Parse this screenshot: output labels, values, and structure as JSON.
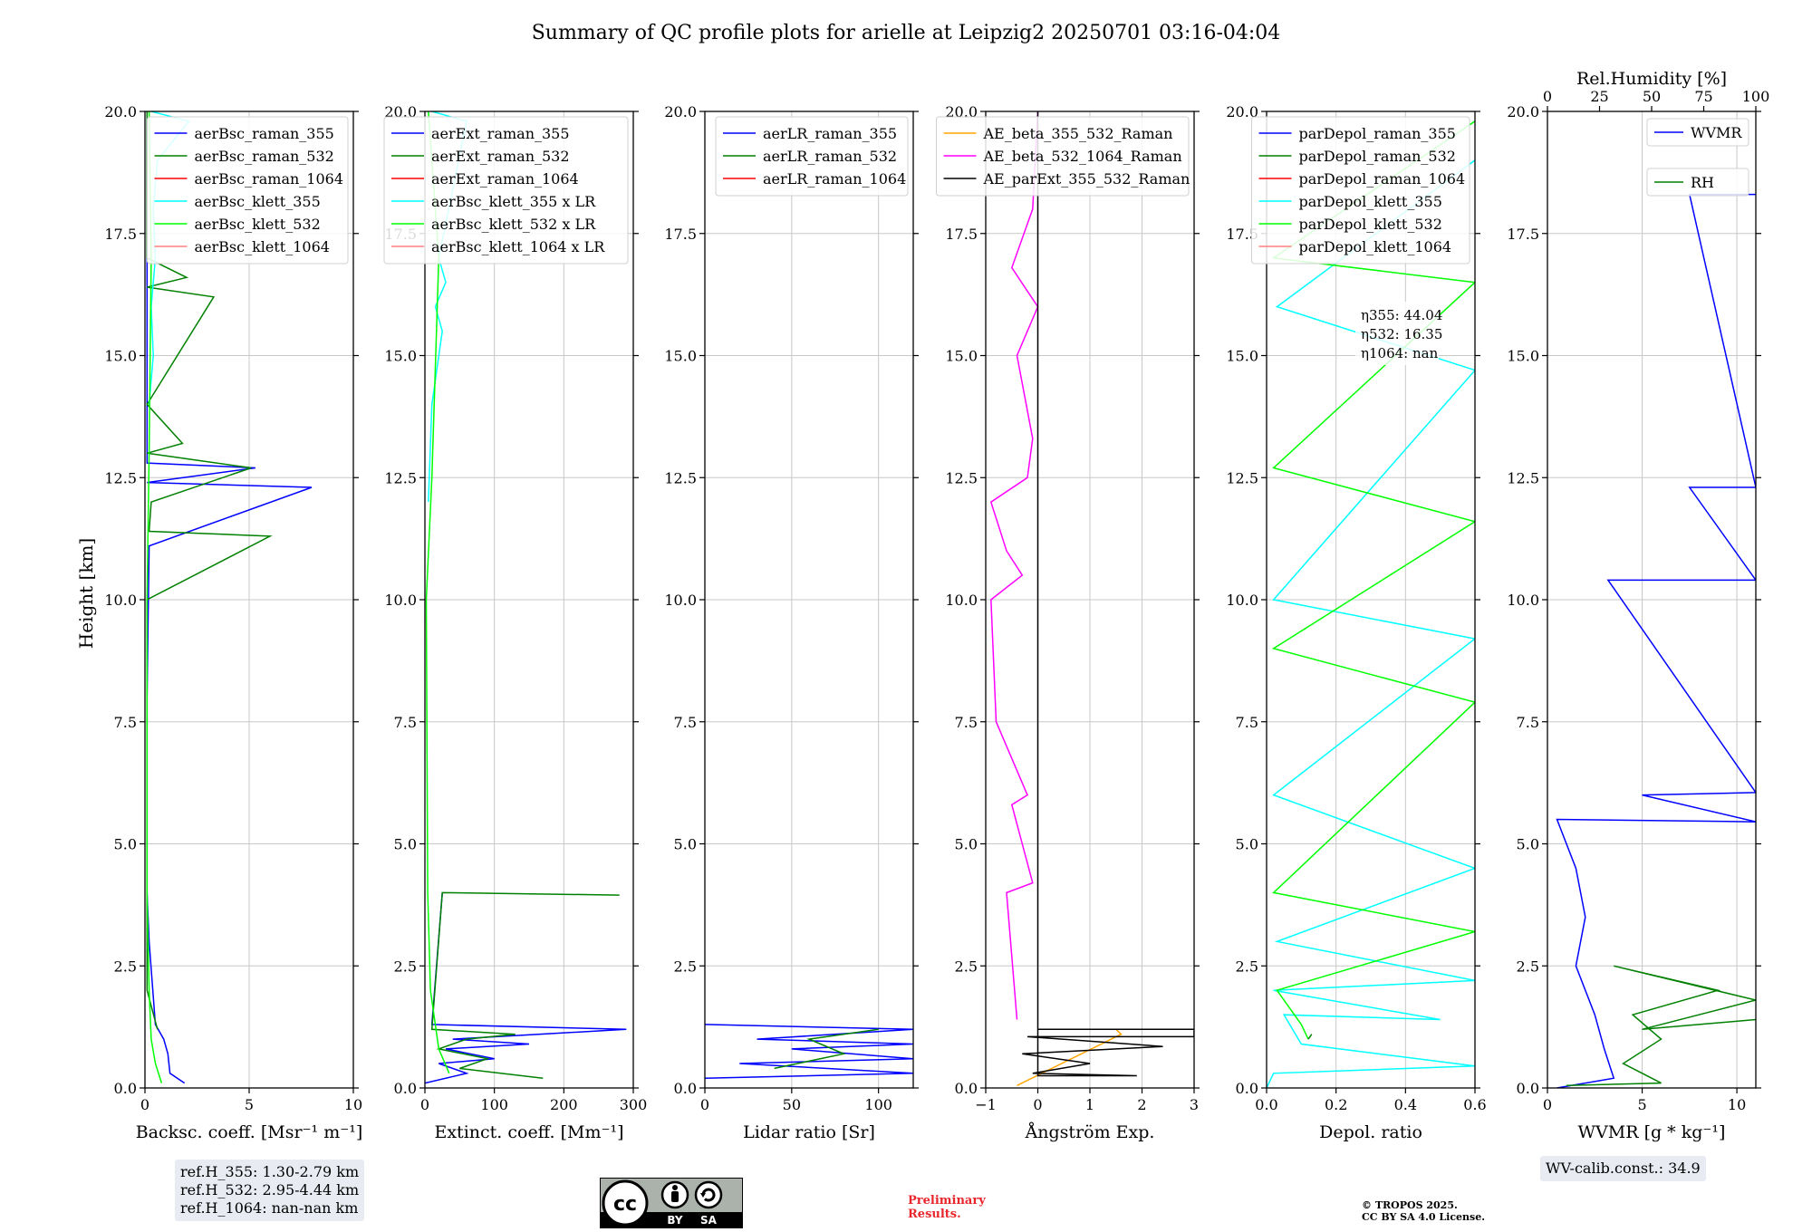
{
  "title": "Summary of QC profile plots for arielle at Leipzig2 20250701 03:16-04:04",
  "ylabel": "Height [km]",
  "y_ticks": [
    "0.0",
    "2.5",
    "5.0",
    "7.5",
    "10.0",
    "12.5",
    "15.0",
    "17.5",
    "20.0"
  ],
  "ref_heights": [
    "ref.H_355: 1.30-2.79 km",
    "ref.H_532: 2.95-4.44 km",
    "ref.H_1064: nan-nan km"
  ],
  "wv_calib": "WV-calib.const.: 34.9",
  "preliminary": [
    "Preliminary",
    "Results."
  ],
  "copyright": [
    "© TROPOS 2025.",
    "CC BY SA 4.0 License."
  ],
  "license_badge": {
    "cc": "cc",
    "by": "BY",
    "sa": "SA"
  },
  "colors": {
    "blue": "#0000ff",
    "green": "#008000",
    "red": "#ff0000",
    "cyan": "#00ffff",
    "lime": "#00ff00",
    "pink": "#ff8080",
    "orange": "#ffa500",
    "magenta": "#ff00ff",
    "black": "#000000"
  },
  "chart_data": [
    {
      "type": "line",
      "xlabel": "Backsc. coeff. [Msr⁻¹ m⁻¹]",
      "xlim": [
        0,
        10
      ],
      "ylim": [
        0,
        20
      ],
      "x_ticks": [
        0,
        5,
        10
      ],
      "x_tick_labels": [
        "0",
        "5",
        "10"
      ],
      "legend": [
        "aerBsc_raman_355",
        "aerBsc_raman_532",
        "aerBsc_raman_1064",
        "aerBsc_klett_355",
        "aerBsc_klett_532",
        "aerBsc_klett_1064"
      ],
      "legend_colors": [
        "blue",
        "green",
        "red",
        "cyan",
        "lime",
        "pink"
      ],
      "legend_placement": "top-right",
      "series": [
        {
          "name": "aerBsc_raman_355",
          "color": "blue",
          "points": [
            [
              1.9,
              0.1
            ],
            [
              1.2,
              0.3
            ],
            [
              1.1,
              0.7
            ],
            [
              0.9,
              1.0
            ],
            [
              0.5,
              1.3
            ],
            [
              0.2,
              3.0
            ],
            [
              0.1,
              4.0
            ],
            [
              0.1,
              8.0
            ],
            [
              0.2,
              11.1
            ],
            [
              8.0,
              12.3
            ],
            [
              0.1,
              12.4
            ],
            [
              5.3,
              12.7
            ],
            [
              0.1,
              12.8
            ],
            [
              0.1,
              20.0
            ]
          ]
        },
        {
          "name": "aerBsc_raman_532",
          "color": "green",
          "points": [
            [
              0.6,
              1.2
            ],
            [
              0.1,
              2.0
            ],
            [
              0.1,
              7.3
            ],
            [
              0.1,
              10.0
            ],
            [
              6.0,
              11.3
            ],
            [
              0.2,
              11.4
            ],
            [
              0.3,
              12.0
            ],
            [
              5.1,
              12.7
            ],
            [
              0.1,
              13.0
            ],
            [
              1.8,
              13.2
            ],
            [
              0.1,
              14.0
            ],
            [
              3.3,
              16.2
            ],
            [
              0.1,
              16.4
            ],
            [
              2.0,
              16.6
            ],
            [
              0.1,
              17.0
            ],
            [
              0.1,
              20.0
            ]
          ]
        },
        {
          "name": "aerBsc_klett_355",
          "color": "cyan",
          "points": [
            [
              0.2,
              14.0
            ],
            [
              0.4,
              15.0
            ],
            [
              0.3,
              16.0
            ],
            [
              0.5,
              17.0
            ],
            [
              0.4,
              18.0
            ],
            [
              0.6,
              19.0
            ],
            [
              2.1,
              19.8
            ],
            [
              0.3,
              20.0
            ]
          ]
        },
        {
          "name": "aerBsc_klett_532",
          "color": "lime",
          "points": [
            [
              0.8,
              0.1
            ],
            [
              0.5,
              0.5
            ],
            [
              0.3,
              1.0
            ],
            [
              0.2,
              2.0
            ],
            [
              0.1,
              4.0
            ],
            [
              0.1,
              10.0
            ],
            [
              0.2,
              13.0
            ],
            [
              0.3,
              17.0
            ],
            [
              0.2,
              20.0
            ]
          ]
        }
      ]
    },
    {
      "type": "line",
      "xlabel": "Extinct. coeff. [Mm⁻¹]",
      "xlim": [
        0,
        300
      ],
      "ylim": [
        0,
        20
      ],
      "x_ticks": [
        0,
        100,
        200,
        300
      ],
      "x_tick_labels": [
        "0",
        "100",
        "200",
        "300"
      ],
      "legend": [
        "aerExt_raman_355",
        "aerExt_raman_532",
        "aerExt_raman_1064",
        "aerBsc_klett_355 x LR",
        "aerBsc_klett_532 x LR",
        "aerBsc_klett_1064 x LR"
      ],
      "legend_colors": [
        "blue",
        "green",
        "red",
        "cyan",
        "lime",
        "pink"
      ],
      "legend_placement": "top-right",
      "series": [
        {
          "name": "aerExt_raman_355",
          "color": "blue",
          "points": [
            [
              0,
              0.1
            ],
            [
              60,
              0.3
            ],
            [
              20,
              0.5
            ],
            [
              100,
              0.6
            ],
            [
              30,
              0.8
            ],
            [
              150,
              0.9
            ],
            [
              40,
              1.0
            ],
            [
              290,
              1.2
            ],
            [
              10,
              1.3
            ],
            [
              25,
              4.0
            ]
          ]
        },
        {
          "name": "aerExt_raman_532",
          "color": "green",
          "points": [
            [
              170,
              0.2
            ],
            [
              50,
              0.4
            ],
            [
              90,
              0.6
            ],
            [
              20,
              0.8
            ],
            [
              60,
              1.0
            ],
            [
              130,
              1.1
            ],
            [
              10,
              1.2
            ],
            [
              25,
              4.0
            ],
            [
              280,
              3.95
            ]
          ]
        },
        {
          "name": "aerBsc_klett_355 x LR",
          "color": "cyan",
          "points": [
            [
              5,
              12.0
            ],
            [
              10,
              14.0
            ],
            [
              25,
              15.5
            ],
            [
              15,
              16.0
            ],
            [
              30,
              16.5
            ],
            [
              20,
              17.0
            ],
            [
              60,
              19.8
            ],
            [
              10,
              20.0
            ]
          ]
        },
        {
          "name": "aerBsc_klett_532 x LR",
          "color": "lime",
          "points": [
            [
              35,
              0.3
            ],
            [
              20,
              0.8
            ],
            [
              8,
              2.0
            ],
            [
              4,
              4.0
            ],
            [
              2,
              10.0
            ],
            [
              10,
              12.5
            ],
            [
              20,
              17.0
            ],
            [
              5,
              20.0
            ]
          ]
        }
      ]
    },
    {
      "type": "line",
      "xlabel": "Lidar ratio [Sr]",
      "xlim": [
        0,
        120
      ],
      "ylim": [
        0,
        20
      ],
      "x_ticks": [
        0,
        50,
        100
      ],
      "x_tick_labels": [
        "0",
        "50",
        "100"
      ],
      "legend": [
        "aerLR_raman_355",
        "aerLR_raman_532",
        "aerLR_raman_1064"
      ],
      "legend_colors": [
        "blue",
        "green",
        "red"
      ],
      "legend_placement": "top-right",
      "series": [
        {
          "name": "aerLR_raman_355",
          "color": "blue",
          "points": [
            [
              0,
              0.2
            ],
            [
              120,
              0.3
            ],
            [
              20,
              0.5
            ],
            [
              120,
              0.6
            ],
            [
              50,
              0.8
            ],
            [
              120,
              0.9
            ],
            [
              30,
              1.0
            ],
            [
              120,
              1.2
            ],
            [
              0,
              1.3
            ]
          ]
        },
        {
          "name": "aerLR_raman_532",
          "color": "green",
          "points": [
            [
              40,
              0.4
            ],
            [
              80,
              0.7
            ],
            [
              60,
              1.0
            ],
            [
              100,
              1.2
            ]
          ]
        }
      ]
    },
    {
      "type": "line",
      "xlabel": "Ångström Exp.",
      "xlim": [
        -1,
        3
      ],
      "ylim": [
        0,
        20
      ],
      "x_ticks": [
        -1,
        0,
        1,
        2,
        3
      ],
      "x_tick_labels": [
        "−1",
        "0",
        "1",
        "2",
        "3"
      ],
      "legend": [
        "AE_beta_355_532_Raman",
        "AE_beta_532_1064_Raman",
        "AE_parExt_355_532_Raman"
      ],
      "legend_colors": [
        "orange",
        "magenta",
        "black"
      ],
      "legend_placement": "top-right",
      "series": [
        {
          "name": "AE_beta_355_532_Raman",
          "color": "orange",
          "points": [
            [
              1.5,
              1.2
            ],
            [
              1.6,
              1.1
            ],
            [
              -0.4,
              0.05
            ]
          ]
        },
        {
          "name": "AE_beta_532_1064_Raman",
          "color": "magenta",
          "points": [
            [
              -0.4,
              1.4
            ],
            [
              -0.6,
              4.0
            ],
            [
              -0.1,
              4.2
            ],
            [
              -0.5,
              5.8
            ],
            [
              -0.2,
              6.0
            ],
            [
              -0.8,
              7.5
            ],
            [
              -0.9,
              10.0
            ],
            [
              -0.3,
              10.5
            ],
            [
              -0.6,
              11.0
            ],
            [
              -0.9,
              12.0
            ],
            [
              -0.2,
              12.5
            ],
            [
              -0.1,
              13.3
            ],
            [
              -0.4,
              15.0
            ],
            [
              0.0,
              16.0
            ],
            [
              -0.5,
              16.8
            ],
            [
              -0.1,
              18.0
            ],
            [
              0.0,
              20.0
            ]
          ]
        },
        {
          "name": "AE_parExt_355_532_Raman",
          "color": "black",
          "points": [
            [
              0,
              1.2
            ],
            [
              3,
              1.2
            ],
            [
              3,
              1.05
            ],
            [
              -0.2,
              1.05
            ],
            [
              2.4,
              0.85
            ],
            [
              -0.3,
              0.7
            ],
            [
              1.0,
              0.5
            ],
            [
              -0.1,
              0.3
            ],
            [
              1.9,
              0.25
            ],
            [
              0,
              0.25
            ],
            [
              0,
              20.0
            ]
          ]
        }
      ]
    },
    {
      "type": "line",
      "xlabel": "Depol. ratio",
      "xlim": [
        0,
        0.6
      ],
      "ylim": [
        0,
        20
      ],
      "x_ticks": [
        0,
        0.2,
        0.4,
        0.6
      ],
      "x_tick_labels": [
        "0.0",
        "0.2",
        "0.4",
        "0.6"
      ],
      "legend": [
        "parDepol_raman_355",
        "parDepol_raman_532",
        "parDepol_raman_1064",
        "parDepol_klett_355",
        "parDepol_klett_532",
        "parDepol_klett_1064"
      ],
      "legend_colors": [
        "blue",
        "green",
        "red",
        "cyan",
        "lime",
        "pink"
      ],
      "legend_placement": "top-right",
      "annotation": [
        "η355: 44.04",
        "η532: 16.35",
        "η1064: nan"
      ],
      "series": [
        {
          "name": "parDepol_klett_355",
          "color": "cyan",
          "points": [
            [
              0.0,
              0.0
            ],
            [
              0.02,
              0.3
            ],
            [
              0.6,
              0.45
            ],
            [
              0.1,
              0.9
            ],
            [
              0.05,
              1.5
            ],
            [
              0.5,
              1.4
            ],
            [
              0.02,
              2.0
            ],
            [
              0.6,
              2.2
            ],
            [
              0.03,
              3.0
            ],
            [
              0.6,
              4.5
            ],
            [
              0.02,
              6.0
            ],
            [
              0.6,
              9.2
            ],
            [
              0.02,
              10.0
            ],
            [
              0.6,
              14.7
            ],
            [
              0.03,
              16.0
            ],
            [
              0.6,
              19.0
            ]
          ]
        },
        {
          "name": "parDepol_klett_532",
          "color": "lime",
          "points": [
            [
              0.12,
              1.0
            ],
            [
              0.1,
              1.3
            ],
            [
              0.03,
              2.0
            ],
            [
              0.6,
              3.2
            ],
            [
              0.02,
              4.0
            ],
            [
              0.6,
              7.9
            ],
            [
              0.02,
              9.0
            ],
            [
              0.6,
              11.6
            ],
            [
              0.02,
              12.7
            ],
            [
              0.6,
              16.5
            ],
            [
              0.02,
              17.0
            ],
            [
              0.6,
              19.8
            ]
          ]
        },
        {
          "name": "parDepol_raman_532",
          "color": "green",
          "points": [
            [
              0.12,
              1.0
            ],
            [
              0.13,
              1.1
            ]
          ]
        }
      ]
    },
    {
      "type": "line",
      "xlabel": "WVMR [g * kg⁻¹]",
      "xlim": [
        0,
        11
      ],
      "ylim": [
        0,
        20
      ],
      "x_ticks": [
        0,
        5,
        10
      ],
      "x_tick_labels": [
        "0",
        "5",
        "10"
      ],
      "top_axis": {
        "label": "Rel.Humidity [%]",
        "lim": [
          0,
          100
        ],
        "ticks": [
          0,
          25,
          50,
          75,
          100
        ],
        "tick_labels": [
          "0",
          "25",
          "50",
          "75",
          "100"
        ]
      },
      "legend": [
        "WVMR",
        "RH"
      ],
      "legend_colors": [
        "blue",
        "green"
      ],
      "legend_placement": "top-right",
      "series": [
        {
          "name": "WVMR",
          "color": "blue",
          "points": [
            [
              0.5,
              0.0
            ],
            [
              3.5,
              0.2
            ],
            [
              3.0,
              0.8
            ],
            [
              2.5,
              1.5
            ],
            [
              1.5,
              2.5
            ],
            [
              2.0,
              3.5
            ],
            [
              1.5,
              4.5
            ],
            [
              0.5,
              5.5
            ],
            [
              11,
              5.45
            ],
            [
              5.0,
              6.0
            ],
            [
              11,
              6.05
            ],
            [
              3.2,
              10.4
            ],
            [
              11,
              10.4
            ],
            [
              7.5,
              12.3
            ],
            [
              11,
              12.3
            ],
            [
              7.5,
              18.3
            ],
            [
              11,
              18.3
            ]
          ]
        },
        {
          "name": "RH",
          "color": "green",
          "points": [
            [
              1.0,
              0.05
            ],
            [
              6.0,
              0.1
            ],
            [
              4.0,
              0.5
            ],
            [
              6.0,
              1.0
            ],
            [
              4.5,
              1.5
            ],
            [
              9.0,
              2.0
            ],
            [
              3.5,
              2.5
            ],
            [
              11,
              1.8
            ],
            [
              5.0,
              1.2
            ],
            [
              11,
              1.4
            ]
          ]
        }
      ]
    }
  ]
}
